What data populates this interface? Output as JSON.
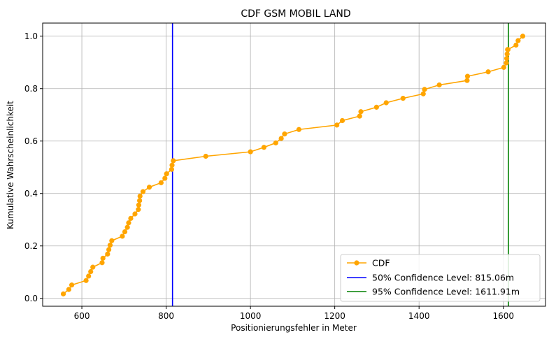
{
  "chart_data": {
    "type": "line",
    "title": "CDF GSM MOBIL LAND",
    "xlabel": "Positionierungsfehler in Meter",
    "ylabel": "Kumulative Wahrscheinlichkeit",
    "xlim": [
      507,
      1700
    ],
    "ylim": [
      -0.03,
      1.05
    ],
    "xticks": [
      600,
      800,
      1000,
      1200,
      1400,
      1600
    ],
    "yticks": [
      0.0,
      0.2,
      0.4,
      0.6,
      0.8,
      1.0
    ],
    "xtick_labels": [
      "600",
      "800",
      "1000",
      "1200",
      "1400",
      "1600"
    ],
    "ytick_labels": [
      "0.0",
      "0.2",
      "0.4",
      "0.6",
      "0.8",
      "1.0"
    ],
    "grid": true,
    "legend_position": "lower right",
    "series": [
      {
        "name": "CDF",
        "color": "#FFA500",
        "marker": "circle",
        "points": [
          [
            556,
            0.017
          ],
          [
            569,
            0.034
          ],
          [
            576,
            0.051
          ],
          [
            610,
            0.068
          ],
          [
            616,
            0.085
          ],
          [
            621,
            0.102
          ],
          [
            626,
            0.119
          ],
          [
            648,
            0.136
          ],
          [
            650,
            0.153
          ],
          [
            661,
            0.169
          ],
          [
            664,
            0.186
          ],
          [
            667,
            0.203
          ],
          [
            671,
            0.22
          ],
          [
            696,
            0.237
          ],
          [
            702,
            0.254
          ],
          [
            708,
            0.271
          ],
          [
            711,
            0.288
          ],
          [
            716,
            0.305
          ],
          [
            726,
            0.322
          ],
          [
            734,
            0.339
          ],
          [
            735,
            0.356
          ],
          [
            737,
            0.373
          ],
          [
            738,
            0.39
          ],
          [
            745,
            0.407
          ],
          [
            760,
            0.424
          ],
          [
            788,
            0.441
          ],
          [
            797,
            0.458
          ],
          [
            801,
            0.475
          ],
          [
            813,
            0.492
          ],
          [
            814,
            0.508
          ],
          [
            817,
            0.525
          ],
          [
            894,
            0.542
          ],
          [
            1000,
            0.559
          ],
          [
            1032,
            0.576
          ],
          [
            1060,
            0.593
          ],
          [
            1073,
            0.61
          ],
          [
            1081,
            0.627
          ],
          [
            1115,
            0.644
          ],
          [
            1205,
            0.661
          ],
          [
            1218,
            0.678
          ],
          [
            1259,
            0.695
          ],
          [
            1262,
            0.712
          ],
          [
            1299,
            0.729
          ],
          [
            1322,
            0.746
          ],
          [
            1362,
            0.763
          ],
          [
            1410,
            0.78
          ],
          [
            1413,
            0.797
          ],
          [
            1448,
            0.814
          ],
          [
            1514,
            0.831
          ],
          [
            1515,
            0.847
          ],
          [
            1564,
            0.864
          ],
          [
            1601,
            0.881
          ],
          [
            1607,
            0.898
          ],
          [
            1608,
            0.915
          ],
          [
            1609,
            0.932
          ],
          [
            1610,
            0.949
          ],
          [
            1611,
            0.949
          ],
          [
            1630,
            0.966
          ],
          [
            1635,
            0.983
          ],
          [
            1646,
            1.0
          ]
        ]
      }
    ],
    "reference_lines": [
      {
        "name": "50% Confidence Level: 815.06m",
        "x": 815.06,
        "color": "#0000FF"
      },
      {
        "name": "95% Confidence Level: 1611.91m",
        "x": 1611.91,
        "color": "#008000"
      }
    ],
    "legend": [
      {
        "label": "CDF",
        "color": "#FFA500",
        "kind": "line-marker"
      },
      {
        "label": "50% Confidence Level: 815.06m",
        "color": "#0000FF",
        "kind": "line"
      },
      {
        "label": "95% Confidence Level: 1611.91m",
        "color": "#008000",
        "kind": "line"
      }
    ]
  }
}
